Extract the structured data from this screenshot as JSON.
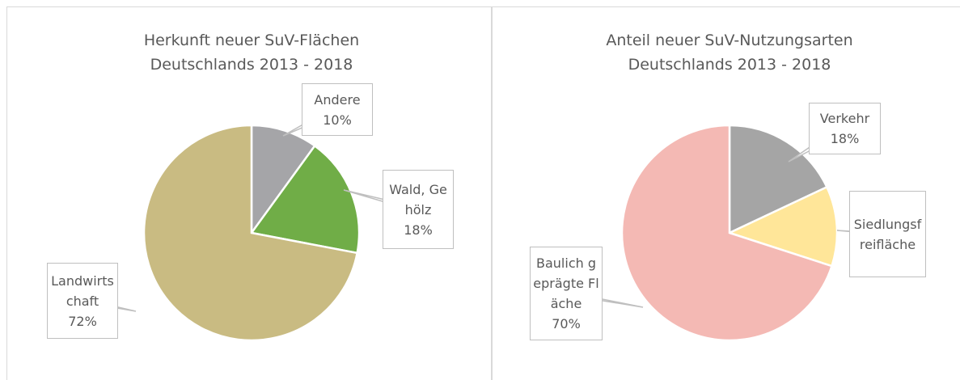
{
  "chart_data": [
    {
      "type": "pie",
      "title": "Herkunft neuer SuV-Flächen\nDeutschlands 2013 - 2018",
      "categories": [
        "Andere",
        "Wald, Gehölz",
        "Landwirtschaft"
      ],
      "values": [
        10,
        18,
        72
      ],
      "value_labels": [
        "10%",
        "18%",
        "72%"
      ],
      "colors": [
        "#a5a5a8",
        "#70ad47",
        "#c9bb82"
      ]
    },
    {
      "type": "pie",
      "title": "Anteil neuer SuV-Nutzungsarten\nDeutschlands 2013 - 2018",
      "categories": [
        "Verkehr",
        "Siedlungsfreifläche",
        "Baulich geprägte Fläche"
      ],
      "values": [
        18,
        12,
        70
      ],
      "value_labels": [
        "18%",
        null,
        "70%"
      ],
      "colors": [
        "#a5a5a5",
        "#ffe699",
        "#f4b9b4"
      ]
    }
  ]
}
